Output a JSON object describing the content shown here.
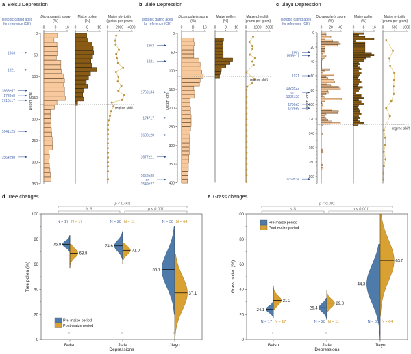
{
  "chart_data": [
    {
      "type": "bar",
      "panel_letter": "a",
      "title": "Beisu Depression",
      "dating_header": [
        "Isotopic dating ages",
        "for reference (CE)"
      ],
      "ages": [
        {
          "label": "1963",
          "depth": 45
        },
        {
          "label": "1921",
          "depth": 85
        },
        {
          "label": "1865±57",
          "depth": 133
        },
        {
          "label": "1789±8",
          "depth": 145
        },
        {
          "label": "1710±17",
          "depth": 156
        },
        {
          "label": "1641±25",
          "depth": 228
        },
        {
          "label": "1564±90",
          "depth": 288
        }
      ],
      "depth_axis": {
        "label": "Depth (cm)",
        "ticks": [
          "0",
          "50",
          "100",
          "150",
          "200",
          "250",
          "300",
          "350"
        ],
        "range": [
          0,
          350
        ]
      },
      "regime_shift": {
        "label": "regime shift",
        "depth": 165
      },
      "spore": {
        "header": "Dicranopteris spore",
        "unit": "(%)",
        "ticks": [
          "0",
          "8",
          "16"
        ],
        "max": 16,
        "depth_range": [
          0,
          345
        ],
        "values": [
          9.4,
          7,
          9,
          9.4,
          9.4,
          8.6,
          11.7,
          11.7,
          12,
          13.3,
          14.2,
          13.6,
          14.2,
          14.2,
          14.8,
          9,
          7.3,
          4.5,
          4.5,
          4.8,
          5,
          5.2,
          5.5,
          5.8,
          5.9,
          6,
          3.6,
          3.8,
          3.5,
          3.8,
          4.2,
          4.5,
          5
        ]
      },
      "pollen": {
        "header": "Maize pollen",
        "unit": "(%)",
        "ticks": [
          "0",
          "8",
          "16"
        ],
        "max": 16,
        "depth_range": [
          0,
          168
        ],
        "values": [
          7.6,
          8.4,
          11.2,
          11.9,
          12.2,
          11.5,
          10.4,
          11,
          14.2,
          10.1,
          8.8,
          7.3,
          8.1,
          5.3,
          4.9,
          5.6,
          1.5
        ]
      },
      "phytolith": {
        "header": "Maize phytolith",
        "unit": "(grains per gram)",
        "ticks": [
          "0",
          "2000",
          "4000"
        ],
        "max": 4000,
        "points": [
          [
            5,
            1450
          ],
          [
            16,
            1250
          ],
          [
            26,
            1350
          ],
          [
            37,
            1900
          ],
          [
            48,
            1450
          ],
          [
            58,
            1550
          ],
          [
            69,
            1750
          ],
          [
            80,
            2600
          ],
          [
            90,
            1400
          ],
          [
            101,
            1800
          ],
          [
            111,
            1700
          ],
          [
            122,
            2300
          ],
          [
            133,
            1800
          ],
          [
            144,
            2800
          ],
          [
            155,
            2400
          ],
          [
            161,
            700
          ],
          [
            170,
            1000
          ],
          [
            181,
            600
          ],
          [
            192,
            400
          ],
          [
            202,
            200
          ],
          [
            213,
            50
          ],
          [
            224,
            50
          ],
          [
            235,
            50
          ],
          [
            246,
            50
          ],
          [
            256,
            50
          ],
          [
            267,
            50
          ],
          [
            278,
            50
          ],
          [
            289,
            50
          ],
          [
            300,
            50
          ],
          [
            310,
            50
          ],
          [
            321,
            50
          ],
          [
            340,
            50
          ]
        ]
      }
    },
    {
      "type": "bar",
      "panel_letter": "b",
      "title": "Jiale Depression",
      "dating_header": [
        "Isotopic dating ages",
        "for reference (CE)"
      ],
      "ages": [
        {
          "label": "1963",
          "depth": 32
        },
        {
          "label": "1921",
          "depth": 74
        },
        {
          "label": "1769±34",
          "depth": 157
        },
        {
          "label": "1747±7",
          "depth": 226
        },
        {
          "label": "1680±20",
          "depth": 272
        },
        {
          "label": "1677±21",
          "depth": 331
        },
        {
          "label": "1652±28",
          "label2": "or",
          "label3": "1549±27",
          "depth": 392
        }
      ],
      "depth_axis": {
        "label": "Depth (cm)",
        "ticks": [
          "0",
          "50",
          "100",
          "150",
          "200",
          "250",
          "300",
          "350",
          "400"
        ],
        "range": [
          0,
          400
        ]
      },
      "regime_shift": {
        "label": "regime shift",
        "depth": 114
      },
      "spore": {
        "header": "Dicranopteris spore",
        "unit": "(%)",
        "ticks": [
          "0",
          "8",
          "16"
        ],
        "max": 16,
        "depth_range": [
          12,
          402
        ],
        "values": [
          8.4,
          8.7,
          8.4,
          8.4,
          8.4,
          11.9,
          12.8,
          13.4,
          14,
          15,
          12.8,
          12.3,
          8.4,
          9,
          8.7,
          5.9,
          5.9,
          6.2,
          6.2,
          6.6,
          6.6,
          6.6,
          6.2,
          5.9,
          5.6,
          5.6,
          5.3,
          5.3,
          5.3,
          5,
          5,
          4.7,
          4.7,
          4.4,
          4.4,
          4.1
        ]
      },
      "pollen": {
        "header": "Maize pollen",
        "unit": "(%)",
        "ticks": [
          "0",
          "8",
          "16"
        ],
        "max": 16,
        "depth_range": [
          12,
          120
        ],
        "values": [
          6.4,
          5.6,
          5.9,
          5.9,
          6.1,
          6.1,
          13.2,
          11.2,
          8.1,
          4.7,
          3.9,
          3.4
        ]
      },
      "phytolith": {
        "header": "Maize phytolith",
        "unit": "(grains per gram)",
        "ticks": [
          "0",
          "1000",
          "2000"
        ],
        "max": 2000,
        "points": [
          [
            8,
            620
          ],
          [
            23,
            300
          ],
          [
            34,
            560
          ],
          [
            41,
            560
          ],
          [
            57,
            320
          ],
          [
            65,
            780
          ],
          [
            75,
            560
          ],
          [
            84,
            660
          ],
          [
            104,
            40
          ],
          [
            122,
            720
          ],
          [
            133,
            520
          ],
          [
            143,
            100
          ],
          [
            151,
            50
          ],
          [
            170,
            50
          ],
          [
            185,
            50
          ],
          [
            200,
            50
          ],
          [
            215,
            50
          ],
          [
            230,
            50
          ],
          [
            245,
            50
          ],
          [
            260,
            50
          ],
          [
            275,
            50
          ],
          [
            290,
            50
          ],
          [
            305,
            50
          ],
          [
            320,
            50
          ],
          [
            335,
            50
          ],
          [
            350,
            50
          ],
          [
            365,
            50
          ],
          [
            380,
            50
          ],
          [
            398,
            50
          ]
        ]
      }
    },
    {
      "type": "bar",
      "panel_letter": "c",
      "title": "Jiayu Depression",
      "dating_header": [
        "Isotopic dating ages",
        "for reference (CE)"
      ],
      "ages": [
        {
          "label": "1963",
          "depth": 27
        },
        {
          "label": "1939±11",
          "depth": 32
        },
        {
          "label": "1921",
          "depth": 60
        },
        {
          "label": "1928±22",
          "label2": "or",
          "label3": "1882±30",
          "depth": 83
        },
        {
          "label": "1790±2",
          "depth": 100
        },
        {
          "label": "1789±9",
          "depth": 105
        },
        {
          "label": "1769±34",
          "depth": 204
        }
      ],
      "depth_axis": {
        "label": "Depth (cm)",
        "ticks": [
          "0",
          "20",
          "40",
          "60",
          "80",
          "100",
          "120",
          "140",
          "160",
          "180",
          "200"
        ],
        "range": [
          0,
          210
        ]
      },
      "regime_shift": {
        "label": "regime shift",
        "depth": 128
      },
      "spore": {
        "header": "Dicranopteris spore",
        "unit": "(%)",
        "ticks": [
          "0",
          "20",
          "40"
        ],
        "max": 40,
        "depth_range": [
          0,
          130
        ],
        "values": [
          10,
          10,
          20,
          8,
          24,
          36,
          40,
          34,
          8,
          8,
          6,
          8,
          2,
          10,
          6,
          2,
          1,
          1,
          1,
          1,
          1,
          18,
          6,
          4,
          26,
          10,
          14,
          26,
          28,
          12,
          20,
          36,
          40,
          14,
          16,
          10,
          2,
          6,
          42,
          8,
          1,
          2,
          4,
          0,
          22,
          36,
          34,
          10,
          6,
          10,
          14,
          22,
          40,
          2
        ],
        "sparse": [
          [
            140,
            2
          ],
          [
            162,
            3
          ],
          [
            165,
            4
          ],
          [
            183,
            3
          ],
          [
            188,
            4
          ]
        ]
      },
      "pollen": {
        "header": "Maize pollen",
        "unit": "(%)",
        "ticks": [
          "0",
          "8",
          "16"
        ],
        "max": 16,
        "depth_range": [
          0,
          130
        ],
        "values": [
          8,
          4,
          9,
          16,
          2,
          9,
          9,
          9,
          9,
          9,
          9,
          14,
          16,
          13,
          10,
          8,
          4,
          5,
          3,
          5,
          6,
          4,
          6,
          5,
          4,
          3,
          5,
          6,
          4,
          3,
          7,
          5,
          4,
          2,
          6,
          6,
          8,
          4,
          6,
          8,
          4,
          3,
          4,
          5,
          5,
          6,
          4,
          5,
          3,
          5,
          8,
          3
        ]
      },
      "phytolith": {
        "header": "Maize pytolith",
        "unit": "(grains per gram)",
        "ticks": [
          "0",
          "500",
          "1000"
        ],
        "max": 1000,
        "points": [
          [
            10,
            140
          ],
          [
            25,
            430
          ],
          [
            36,
            280
          ],
          [
            46,
            310
          ],
          [
            56,
            490
          ],
          [
            66,
            480
          ],
          [
            75,
            460
          ],
          [
            85,
            470
          ],
          [
            95,
            360
          ],
          [
            105,
            140
          ],
          [
            116,
            300
          ],
          [
            136,
            40
          ],
          [
            146,
            100
          ],
          [
            156,
            100
          ],
          [
            166,
            40
          ],
          [
            176,
            110
          ],
          [
            186,
            40
          ],
          [
            196,
            20
          ],
          [
            205,
            20
          ]
        ]
      }
    },
    {
      "type": "violin",
      "panel_letter": "d",
      "title": "Tree changes",
      "xlabel": "Depressions",
      "ylabel": "Tree pollen (%)",
      "ylim": [
        0,
        100
      ],
      "yticks": [
        "0",
        "20",
        "40",
        "60",
        "80",
        "100"
      ],
      "categories": [
        "Beisu",
        "Jiale",
        "Jiayu"
      ],
      "legend": {
        "position": "bottom-left",
        "entries": [
          "Pre-maize period",
          "Post-maize period"
        ]
      },
      "series": [
        {
          "name": "Pre-maize period",
          "color": "#4f7bab",
          "medians": [
            75.9,
            74.6,
            55.7
          ],
          "medians_label": [
            "75.9",
            "74.6",
            "55.7"
          ],
          "n": [
            "N = 17",
            "N = 28",
            "N = 38"
          ],
          "ranges": [
            [
              70,
              83
            ],
            [
              64,
              86
            ],
            [
              20,
              90
            ]
          ]
        },
        {
          "name": "Post-maize period",
          "color": "#d9a132",
          "medians": [
            68.8,
            71.0,
            37.1
          ],
          "medians_label": [
            "68.8",
            "71.0",
            "37.1"
          ],
          "n": [
            "N = 17",
            "N = 11",
            "N = 64"
          ],
          "ranges": [
            [
              57,
              76
            ],
            [
              60,
              77
            ],
            [
              0,
              68
            ]
          ]
        }
      ],
      "significance": {
        "outer": "p < 0.001",
        "left": "N.S",
        "right": "p < 0.001",
        "marker": "*"
      }
    },
    {
      "type": "violin",
      "panel_letter": "e",
      "title": "Grass changes",
      "xlabel": "Depressions",
      "ylabel": "Grass pollen (%)",
      "ylim": [
        0,
        100
      ],
      "yticks": [
        "0",
        "20",
        "40",
        "60",
        "80",
        "100"
      ],
      "categories": [
        "Beisu",
        "Jiale",
        "Jiayu"
      ],
      "legend": {
        "position": "top-left",
        "entries": [
          "Pre-maize period",
          "Post-maize period"
        ]
      },
      "series": [
        {
          "name": "Pre-maize period",
          "color": "#4f7bab",
          "medians": [
            24.1,
            25.4,
            44.3
          ],
          "medians_label": [
            "24.1",
            "25.4",
            "44.3"
          ],
          "n": [
            "N = 17",
            "N = 28",
            "N = 38"
          ],
          "ranges": [
            [
              17,
              30
            ],
            [
              16,
              33
            ],
            [
              0,
              76
            ]
          ]
        },
        {
          "name": "Post-maize period",
          "color": "#d9a132",
          "medians": [
            31.2,
            29.0,
            63.0
          ],
          "medians_label": [
            "31.2",
            "29.0",
            "63.0"
          ],
          "n": [
            "N = 17",
            "N = 11",
            "N = 64"
          ],
          "ranges": [
            [
              24,
              43
            ],
            [
              22,
              39
            ],
            [
              19,
              100
            ]
          ]
        }
      ],
      "significance": {
        "outer": "p < 0.001",
        "left": "N.S",
        "right": "p < 0.001",
        "marker": "*"
      }
    }
  ],
  "colors": {
    "spore_fill": "#f7c99c",
    "spore_stroke": "#7a5a3a",
    "pollen_fill": "#8a5b14",
    "phytolith": "#c89a3a",
    "age_text": "#4a68a8",
    "pre_maize": "#4f7bab",
    "post_maize": "#d9a132"
  }
}
